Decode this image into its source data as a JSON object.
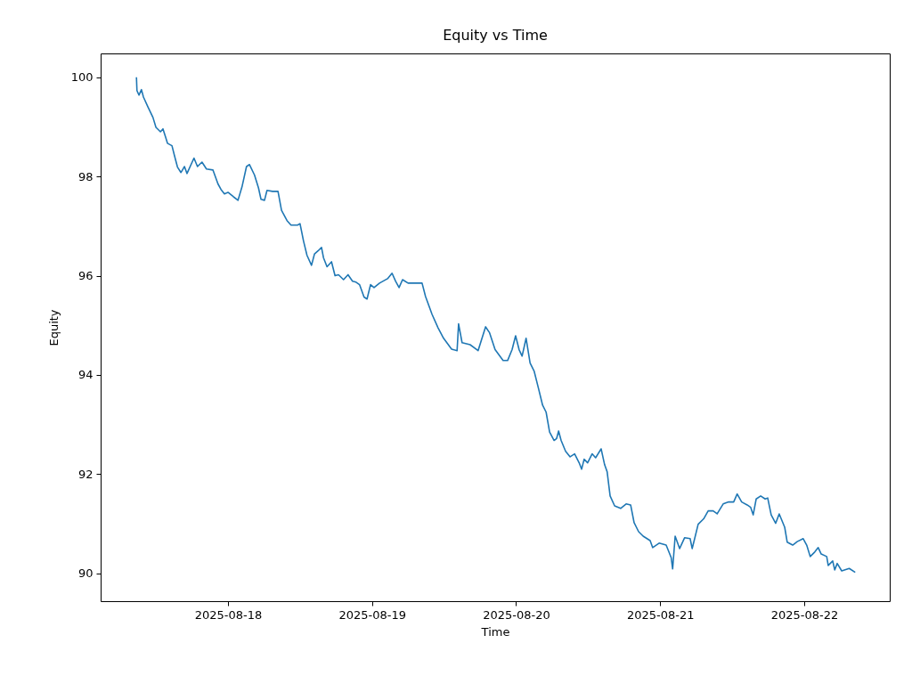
{
  "chart_data": {
    "type": "line",
    "title": "Equity vs Time",
    "xlabel": "Time",
    "ylabel": "Equity",
    "xlim": [
      "2025-08-17T02:47",
      "2025-08-22T14:15"
    ],
    "xticks": [
      "2025-08-18",
      "2025-08-19",
      "2025-08-20",
      "2025-08-21",
      "2025-08-22"
    ],
    "ylim": [
      89.44,
      100.48
    ],
    "yticks": [
      90,
      92,
      94,
      96,
      98,
      100
    ],
    "grid": false,
    "line_style": "solid",
    "series": [
      {
        "color": "#1f77b4",
        "x": [
          "2025-08-17T08:45",
          "2025-08-17T08:50",
          "2025-08-17T09:10",
          "2025-08-17T09:35",
          "2025-08-17T09:55",
          "2025-08-17T10:40",
          "2025-08-17T11:30",
          "2025-08-17T12:00",
          "2025-08-17T12:45",
          "2025-08-17T13:10",
          "2025-08-17T13:35",
          "2025-08-17T13:55",
          "2025-08-17T14:40",
          "2025-08-17T15:05",
          "2025-08-17T15:35",
          "2025-08-17T16:10",
          "2025-08-17T16:25",
          "2025-08-17T16:45",
          "2025-08-17T17:10",
          "2025-08-17T18:20",
          "2025-08-17T18:55",
          "2025-08-17T19:40",
          "2025-08-17T20:25",
          "2025-08-17T21:30",
          "2025-08-17T22:20",
          "2025-08-17T22:50",
          "2025-08-17T23:25",
          "2025-08-18T00:00",
          "2025-08-18T00:55",
          "2025-08-18T01:40",
          "2025-08-18T02:20",
          "2025-08-18T03:05",
          "2025-08-18T03:35",
          "2025-08-18T04:25",
          "2025-08-18T05:05",
          "2025-08-18T05:30",
          "2025-08-18T06:05",
          "2025-08-18T06:30",
          "2025-08-18T07:25",
          "2025-08-18T08:20",
          "2025-08-18T08:55",
          "2025-08-18T09:50",
          "2025-08-18T10:30",
          "2025-08-18T11:35",
          "2025-08-18T12:00",
          "2025-08-18T12:35",
          "2025-08-18T13:10",
          "2025-08-18T13:55",
          "2025-08-18T14:25",
          "2025-08-18T15:00",
          "2025-08-18T15:35",
          "2025-08-18T15:55",
          "2025-08-18T16:30",
          "2025-08-18T17:15",
          "2025-08-18T17:50",
          "2025-08-18T18:25",
          "2025-08-18T19:15",
          "2025-08-18T20:00",
          "2025-08-18T20:45",
          "2025-08-18T21:20",
          "2025-08-18T21:55",
          "2025-08-18T22:40",
          "2025-08-18T23:10",
          "2025-08-18T23:45",
          "2025-08-19T00:20",
          "2025-08-19T01:15",
          "2025-08-19T02:35",
          "2025-08-19T03:20",
          "2025-08-19T03:55",
          "2025-08-19T04:30",
          "2025-08-19T05:05",
          "2025-08-19T06:00",
          "2025-08-19T06:45",
          "2025-08-19T08:20",
          "2025-08-19T08:55",
          "2025-08-19T10:00",
          "2025-08-19T11:00",
          "2025-08-19T11:55",
          "2025-08-19T13:15",
          "2025-08-19T14:10",
          "2025-08-19T14:25",
          "2025-08-19T15:00",
          "2025-08-19T16:20",
          "2025-08-19T17:40",
          "2025-08-19T18:55",
          "2025-08-19T19:35",
          "2025-08-19T20:30",
          "2025-08-19T21:50",
          "2025-08-19T22:35",
          "2025-08-19T23:20",
          "2025-08-19T23:55",
          "2025-08-20T00:30",
          "2025-08-20T01:00",
          "2025-08-20T01:40",
          "2025-08-20T02:20",
          "2025-08-20T03:00",
          "2025-08-20T03:45",
          "2025-08-20T04:25",
          "2025-08-20T05:00",
          "2025-08-20T05:35",
          "2025-08-20T06:20",
          "2025-08-20T06:45",
          "2025-08-20T07:05",
          "2025-08-20T07:30",
          "2025-08-20T08:15",
          "2025-08-20T09:00",
          "2025-08-20T09:45",
          "2025-08-20T10:30",
          "2025-08-20T10:55",
          "2025-08-20T11:20",
          "2025-08-20T11:55",
          "2025-08-20T12:40",
          "2025-08-20T13:15",
          "2025-08-20T14:10",
          "2025-08-20T14:45",
          "2025-08-20T15:10",
          "2025-08-20T15:40",
          "2025-08-20T16:25",
          "2025-08-20T17:25",
          "2025-08-20T18:20",
          "2025-08-20T19:05",
          "2025-08-20T19:40",
          "2025-08-20T20:25",
          "2025-08-20T21:10",
          "2025-08-20T22:20",
          "2025-08-20T22:45",
          "2025-08-20T23:50",
          "2025-08-21T01:00",
          "2025-08-21T01:50",
          "2025-08-21T02:05",
          "2025-08-21T02:30",
          "2025-08-21T03:15",
          "2025-08-21T04:05",
          "2025-08-21T05:00",
          "2025-08-21T05:20",
          "2025-08-21T05:45",
          "2025-08-21T06:20",
          "2025-08-21T07:15",
          "2025-08-21T08:00",
          "2025-08-21T08:50",
          "2025-08-21T09:30",
          "2025-08-21T10:30",
          "2025-08-21T11:25",
          "2025-08-21T12:15",
          "2025-08-21T12:50",
          "2025-08-21T13:35",
          "2025-08-21T14:30",
          "2025-08-21T15:05",
          "2025-08-21T15:30",
          "2025-08-21T16:00",
          "2025-08-21T16:45",
          "2025-08-21T17:30",
          "2025-08-21T17:55",
          "2025-08-21T18:30",
          "2025-08-21T19:15",
          "2025-08-21T19:50",
          "2025-08-21T20:45",
          "2025-08-21T21:10",
          "2025-08-21T22:05",
          "2025-08-21T22:50",
          "2025-08-21T23:50",
          "2025-08-22T00:25",
          "2025-08-22T01:00",
          "2025-08-22T01:45",
          "2025-08-22T02:20",
          "2025-08-22T02:50",
          "2025-08-22T03:45",
          "2025-08-22T04:00",
          "2025-08-22T04:45",
          "2025-08-22T05:05",
          "2025-08-22T05:30",
          "2025-08-22T06:15",
          "2025-08-22T07:30",
          "2025-08-22T08:30"
        ],
        "values": [
          100.0,
          99.73,
          99.64,
          99.75,
          99.6,
          99.4,
          99.19,
          98.99,
          98.9,
          98.96,
          98.8,
          98.67,
          98.62,
          98.42,
          98.19,
          98.08,
          98.13,
          98.2,
          98.06,
          98.37,
          98.2,
          98.29,
          98.15,
          98.13,
          97.85,
          97.74,
          97.65,
          97.68,
          97.59,
          97.52,
          97.79,
          98.2,
          98.24,
          98.03,
          97.77,
          97.54,
          97.52,
          97.72,
          97.7,
          97.7,
          97.32,
          97.11,
          97.02,
          97.02,
          97.05,
          96.7,
          96.41,
          96.21,
          96.44,
          96.5,
          96.57,
          96.36,
          96.18,
          96.28,
          96.0,
          96.02,
          95.92,
          96.02,
          95.89,
          95.87,
          95.82,
          95.57,
          95.53,
          95.82,
          95.76,
          95.85,
          95.94,
          96.05,
          95.89,
          95.76,
          95.92,
          95.85,
          95.85,
          95.85,
          95.58,
          95.22,
          94.95,
          94.74,
          94.52,
          94.49,
          95.03,
          94.65,
          94.61,
          94.49,
          94.97,
          94.85,
          94.51,
          94.29,
          94.29,
          94.51,
          94.79,
          94.51,
          94.38,
          94.74,
          94.24,
          94.08,
          93.72,
          93.39,
          93.25,
          92.85,
          92.68,
          92.72,
          92.87,
          92.68,
          92.46,
          92.35,
          92.41,
          92.23,
          92.1,
          92.3,
          92.23,
          92.41,
          92.33,
          92.51,
          92.19,
          92.05,
          91.56,
          91.36,
          91.31,
          91.4,
          91.38,
          91.02,
          90.84,
          90.75,
          90.66,
          90.52,
          90.61,
          90.57,
          90.32,
          90.09,
          90.75,
          90.5,
          90.72,
          90.7,
          90.5,
          90.7,
          90.99,
          91.1,
          91.26,
          91.26,
          91.2,
          91.4,
          91.44,
          91.44,
          91.6,
          91.44,
          91.38,
          91.33,
          91.18,
          91.5,
          91.56,
          91.5,
          91.52,
          91.18,
          91.01,
          91.2,
          90.93,
          90.63,
          90.57,
          90.64,
          90.7,
          90.57,
          90.34,
          90.43,
          90.52,
          90.39,
          90.34,
          90.16,
          90.25,
          90.07,
          90.2,
          90.05,
          90.1,
          90.02
        ]
      }
    ]
  }
}
